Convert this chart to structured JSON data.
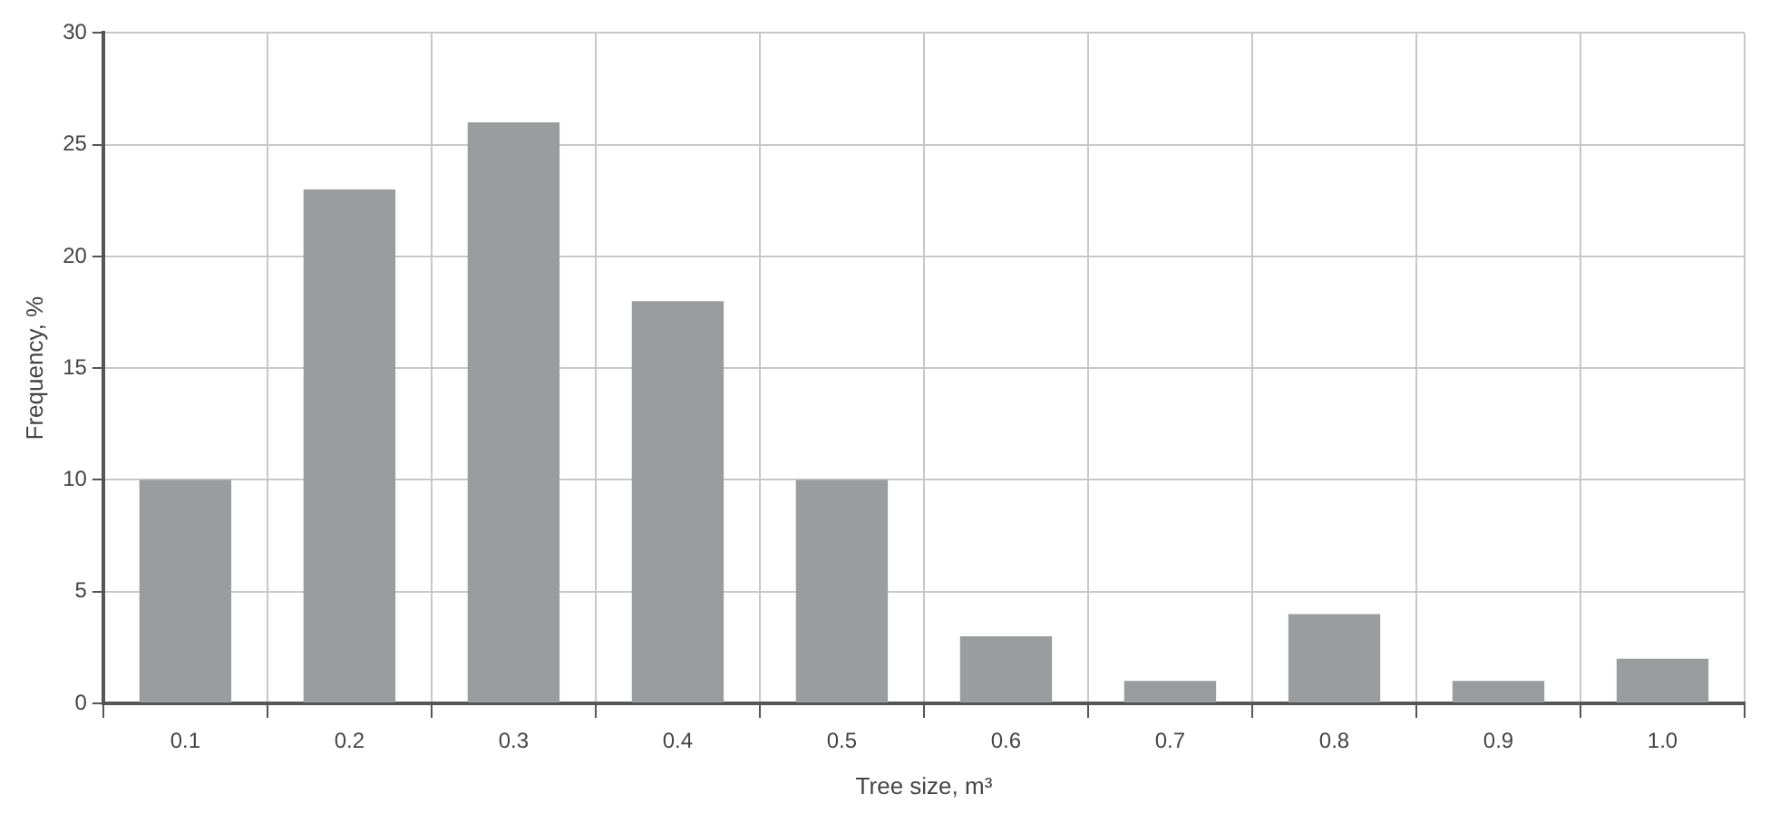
{
  "chart_data": {
    "type": "bar",
    "xlabel": "Tree size, m³",
    "ylabel": "Frequency, %",
    "categories": [
      "0.1",
      "0.2",
      "0.3",
      "0.4",
      "0.5",
      "0.6",
      "0.7",
      "0.8",
      "0.9",
      "1.0"
    ],
    "values": [
      10,
      23,
      26,
      18,
      10,
      3,
      1,
      4,
      1,
      2
    ],
    "color": "#9a9c9e",
    "ylim": [
      0,
      30
    ],
    "yticks": [
      0,
      5,
      10,
      15,
      20,
      25,
      30
    ],
    "grid": true
  }
}
